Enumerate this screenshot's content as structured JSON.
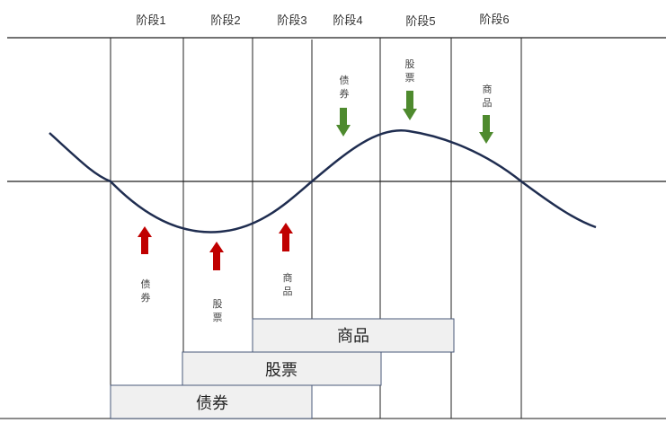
{
  "stages": [
    "阶段1",
    "阶段2",
    "阶段3",
    "阶段4",
    "阶段5",
    "阶段6"
  ],
  "rising_signals": [
    {
      "asset": "债券",
      "direction": "up",
      "color": "#c00000"
    },
    {
      "asset": "股票",
      "direction": "up",
      "color": "#c00000"
    },
    {
      "asset": "商品",
      "direction": "up",
      "color": "#c00000"
    }
  ],
  "falling_signals": [
    {
      "asset": "债券",
      "direction": "down",
      "color": "#4e8a2e"
    },
    {
      "asset": "股票",
      "direction": "down",
      "color": "#4e8a2e"
    },
    {
      "asset": "商品",
      "direction": "down",
      "color": "#4e8a2e"
    }
  ],
  "holding_bars": [
    {
      "asset": "商品"
    },
    {
      "asset": "股票"
    },
    {
      "asset": "债券"
    }
  ],
  "colors": {
    "curve": "#1f2d50",
    "bar_fill": "#f0f0f0",
    "bar_border": "#4a5a7a",
    "grid": "#222222"
  }
}
